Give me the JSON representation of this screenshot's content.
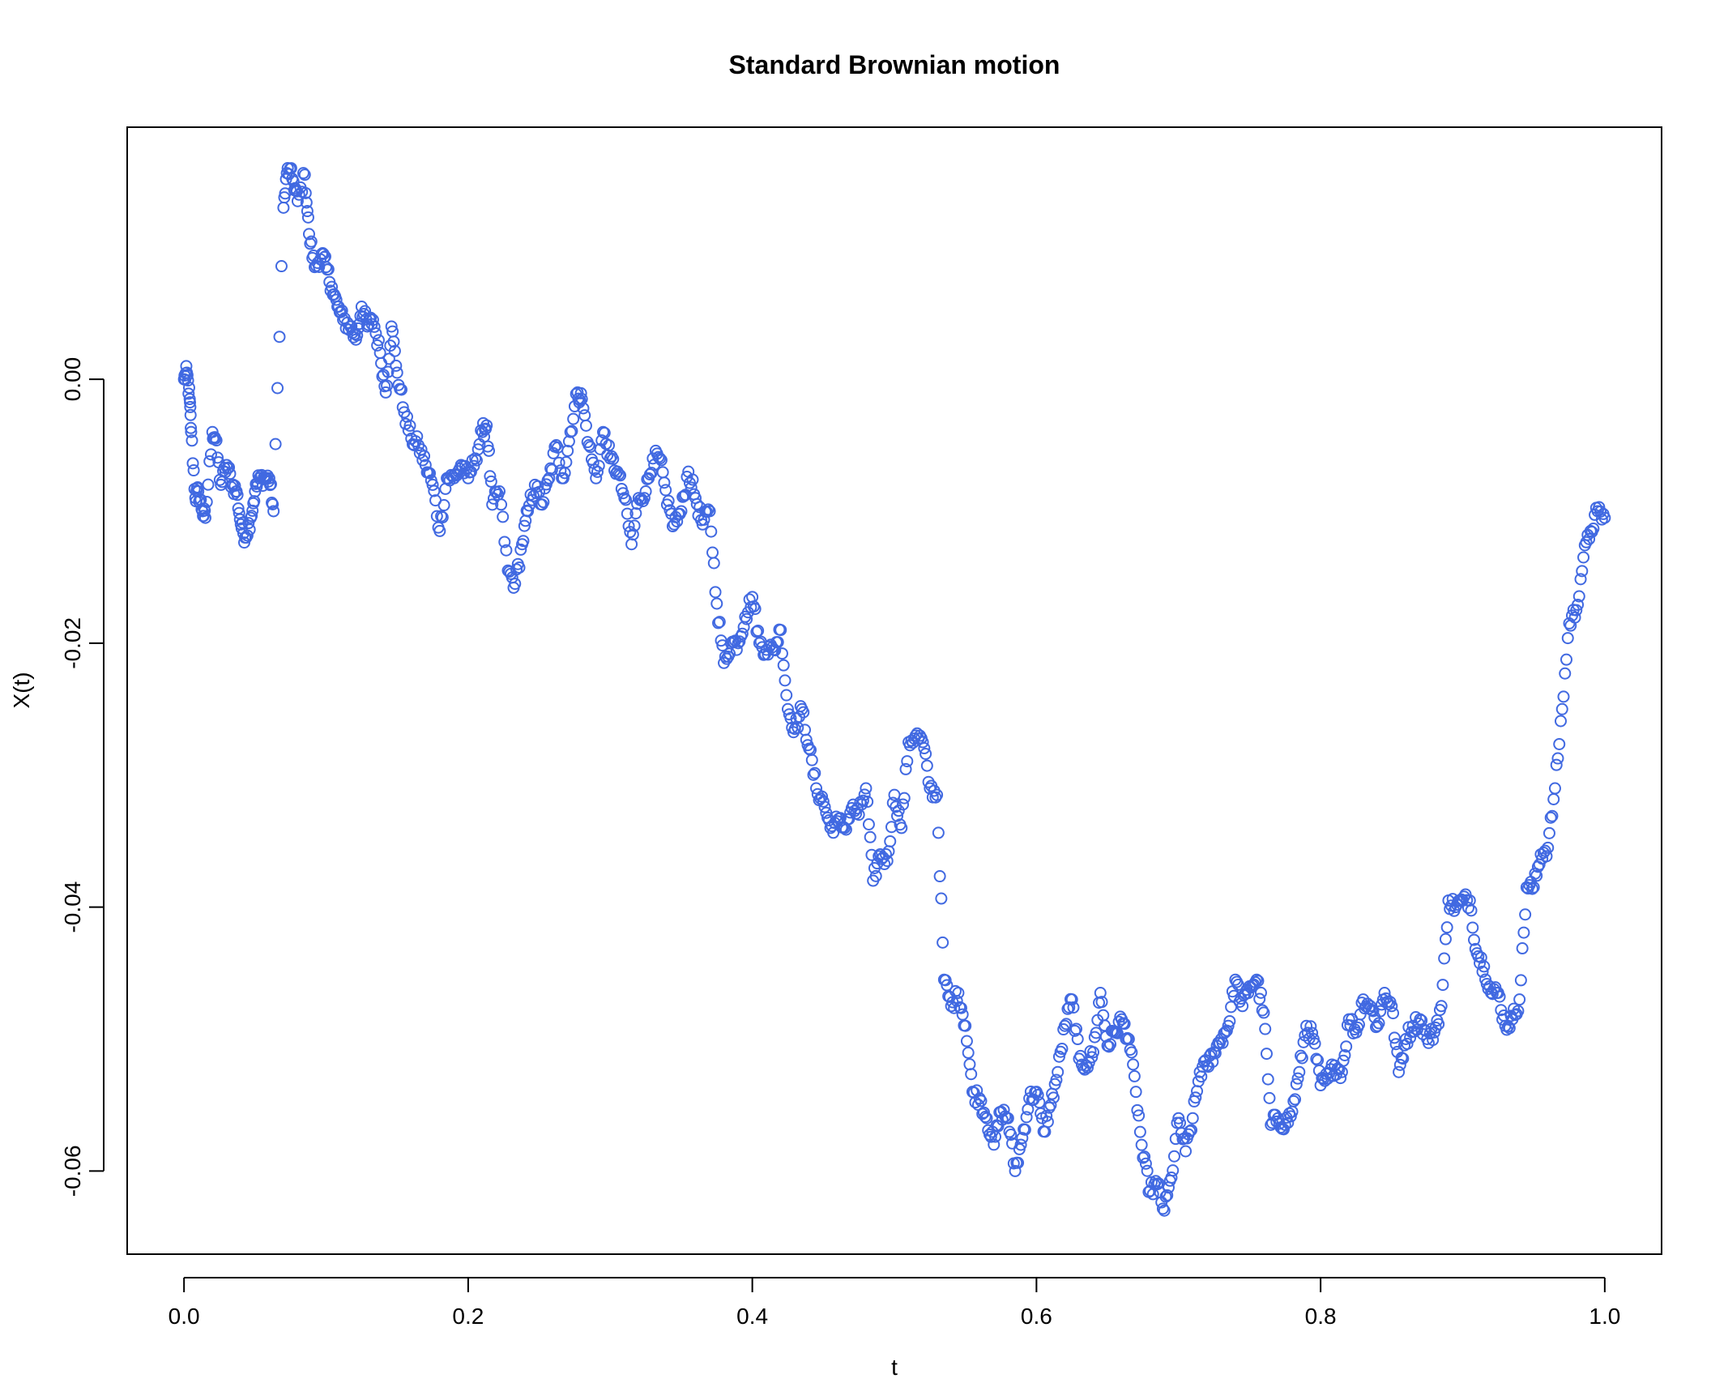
{
  "chart_data": {
    "type": "scatter",
    "title": "Standard Brownian motion",
    "xlabel": "t",
    "ylabel": "X(t)",
    "xlim": [
      -0.04,
      1.04
    ],
    "ylim": [
      -0.0663,
      0.0191
    ],
    "x_ticks": [
      0.0,
      0.2,
      0.4,
      0.6,
      0.8,
      1.0
    ],
    "x_tick_labels": [
      "0.0",
      "0.2",
      "0.4",
      "0.6",
      "0.8",
      "1.0"
    ],
    "y_ticks": [
      0.0,
      -0.02,
      -0.04,
      -0.06
    ],
    "y_tick_labels": [
      "0.00",
      "-0.02",
      "-0.04",
      "-0.06"
    ],
    "grid": false,
    "legend": false,
    "marker": "open-circle",
    "point_color": "#4169e1",
    "series": [
      {
        "anchors": [
          [
            0.0,
            0.0
          ],
          [
            0.002,
            0.0005
          ],
          [
            0.004,
            -0.0015
          ],
          [
            0.005,
            -0.004
          ],
          [
            0.008,
            -0.009
          ],
          [
            0.01,
            -0.0085
          ],
          [
            0.013,
            -0.01
          ],
          [
            0.015,
            -0.0105
          ],
          [
            0.02,
            -0.004
          ],
          [
            0.022,
            -0.0045
          ],
          [
            0.026,
            -0.008
          ],
          [
            0.03,
            -0.0065
          ],
          [
            0.034,
            -0.008
          ],
          [
            0.037,
            -0.0085
          ],
          [
            0.04,
            -0.011
          ],
          [
            0.043,
            -0.012
          ],
          [
            0.047,
            -0.0105
          ],
          [
            0.05,
            -0.0085
          ],
          [
            0.053,
            -0.0075
          ],
          [
            0.057,
            -0.0075
          ],
          [
            0.06,
            -0.0075
          ],
          [
            0.063,
            -0.01
          ],
          [
            0.07,
            0.013
          ],
          [
            0.073,
            0.016
          ],
          [
            0.077,
            0.015
          ],
          [
            0.08,
            0.0135
          ],
          [
            0.085,
            0.0155
          ],
          [
            0.088,
            0.011
          ],
          [
            0.092,
            0.0085
          ],
          [
            0.097,
            0.0095
          ],
          [
            0.1,
            0.0085
          ],
          [
            0.104,
            0.007
          ],
          [
            0.108,
            0.0055
          ],
          [
            0.112,
            0.0045
          ],
          [
            0.117,
            0.004
          ],
          [
            0.121,
            0.003
          ],
          [
            0.125,
            0.0055
          ],
          [
            0.129,
            0.004
          ],
          [
            0.133,
            0.0045
          ],
          [
            0.138,
            0.002
          ],
          [
            0.142,
            -0.001
          ],
          [
            0.146,
            0.004
          ],
          [
            0.15,
            0.0005
          ],
          [
            0.155,
            -0.0025
          ],
          [
            0.16,
            -0.0045
          ],
          [
            0.165,
            -0.005
          ],
          [
            0.17,
            -0.0065
          ],
          [
            0.175,
            -0.008
          ],
          [
            0.18,
            -0.0115
          ],
          [
            0.185,
            -0.0075
          ],
          [
            0.19,
            -0.0075
          ],
          [
            0.195,
            -0.0065
          ],
          [
            0.2,
            -0.0075
          ],
          [
            0.205,
            -0.006
          ],
          [
            0.21,
            -0.004
          ],
          [
            0.213,
            -0.0035
          ],
          [
            0.217,
            -0.0095
          ],
          [
            0.222,
            -0.0085
          ],
          [
            0.228,
            -0.0145
          ],
          [
            0.233,
            -0.0155
          ],
          [
            0.238,
            -0.0125
          ],
          [
            0.242,
            -0.01
          ],
          [
            0.247,
            -0.008
          ],
          [
            0.252,
            -0.0095
          ],
          [
            0.257,
            -0.0075
          ],
          [
            0.262,
            -0.005
          ],
          [
            0.267,
            -0.0075
          ],
          [
            0.272,
            -0.004
          ],
          [
            0.277,
            -0.001
          ],
          [
            0.28,
            -0.0015
          ],
          [
            0.285,
            -0.005
          ],
          [
            0.29,
            -0.0075
          ],
          [
            0.295,
            -0.004
          ],
          [
            0.3,
            -0.006
          ],
          [
            0.305,
            -0.007
          ],
          [
            0.31,
            -0.009
          ],
          [
            0.315,
            -0.0125
          ],
          [
            0.32,
            -0.009
          ],
          [
            0.325,
            -0.0085
          ],
          [
            0.33,
            -0.006
          ],
          [
            0.335,
            -0.006
          ],
          [
            0.34,
            -0.0095
          ],
          [
            0.345,
            -0.011
          ],
          [
            0.35,
            -0.01
          ],
          [
            0.355,
            -0.007
          ],
          [
            0.36,
            -0.009
          ],
          [
            0.365,
            -0.011
          ],
          [
            0.37,
            -0.01
          ],
          [
            0.375,
            -0.017
          ],
          [
            0.38,
            -0.0215
          ],
          [
            0.385,
            -0.02
          ],
          [
            0.39,
            -0.02
          ],
          [
            0.395,
            -0.018
          ],
          [
            0.4,
            -0.0165
          ],
          [
            0.405,
            -0.02
          ],
          [
            0.41,
            -0.0205
          ],
          [
            0.415,
            -0.0205
          ],
          [
            0.42,
            -0.019
          ],
          [
            0.425,
            -0.025
          ],
          [
            0.43,
            -0.0265
          ],
          [
            0.435,
            -0.025
          ],
          [
            0.44,
            -0.028
          ],
          [
            0.445,
            -0.031
          ],
          [
            0.45,
            -0.032
          ],
          [
            0.455,
            -0.034
          ],
          [
            0.46,
            -0.0335
          ],
          [
            0.465,
            -0.034
          ],
          [
            0.47,
            -0.0325
          ],
          [
            0.475,
            -0.033
          ],
          [
            0.48,
            -0.031
          ],
          [
            0.485,
            -0.038
          ],
          [
            0.49,
            -0.036
          ],
          [
            0.495,
            -0.0365
          ],
          [
            0.5,
            -0.0315
          ],
          [
            0.505,
            -0.034
          ],
          [
            0.51,
            -0.0275
          ],
          [
            0.515,
            -0.027
          ],
          [
            0.52,
            -0.0275
          ],
          [
            0.525,
            -0.031
          ],
          [
            0.53,
            -0.0315
          ],
          [
            0.535,
            -0.0455
          ],
          [
            0.54,
            -0.0475
          ],
          [
            0.545,
            -0.0465
          ],
          [
            0.55,
            -0.049
          ],
          [
            0.555,
            -0.054
          ],
          [
            0.56,
            -0.0545
          ],
          [
            0.565,
            -0.056
          ],
          [
            0.57,
            -0.058
          ],
          [
            0.575,
            -0.0555
          ],
          [
            0.58,
            -0.056
          ],
          [
            0.585,
            -0.06
          ],
          [
            0.59,
            -0.0575
          ],
          [
            0.595,
            -0.0545
          ],
          [
            0.6,
            -0.054
          ],
          [
            0.605,
            -0.057
          ],
          [
            0.61,
            -0.055
          ],
          [
            0.615,
            -0.0525
          ],
          [
            0.62,
            -0.049
          ],
          [
            0.625,
            -0.047
          ],
          [
            0.63,
            -0.0515
          ],
          [
            0.635,
            -0.052
          ],
          [
            0.64,
            -0.051
          ],
          [
            0.645,
            -0.0465
          ],
          [
            0.65,
            -0.0505
          ],
          [
            0.655,
            -0.0495
          ],
          [
            0.66,
            -0.0485
          ],
          [
            0.665,
            -0.05
          ],
          [
            0.67,
            -0.054
          ],
          [
            0.675,
            -0.059
          ],
          [
            0.68,
            -0.0615
          ],
          [
            0.685,
            -0.061
          ],
          [
            0.69,
            -0.063
          ],
          [
            0.695,
            -0.0605
          ],
          [
            0.7,
            -0.056
          ],
          [
            0.705,
            -0.0585
          ],
          [
            0.71,
            -0.056
          ],
          [
            0.715,
            -0.0525
          ],
          [
            0.72,
            -0.052
          ],
          [
            0.725,
            -0.051
          ],
          [
            0.73,
            -0.05
          ],
          [
            0.735,
            -0.049
          ],
          [
            0.74,
            -0.0455
          ],
          [
            0.745,
            -0.0475
          ],
          [
            0.75,
            -0.046
          ],
          [
            0.755,
            -0.0455
          ],
          [
            0.76,
            -0.048
          ],
          [
            0.765,
            -0.0565
          ],
          [
            0.77,
            -0.056
          ],
          [
            0.775,
            -0.0565
          ],
          [
            0.78,
            -0.0555
          ],
          [
            0.785,
            -0.0525
          ],
          [
            0.79,
            -0.049
          ],
          [
            0.795,
            -0.05
          ],
          [
            0.8,
            -0.0535
          ],
          [
            0.805,
            -0.053
          ],
          [
            0.81,
            -0.052
          ],
          [
            0.815,
            -0.0525
          ],
          [
            0.82,
            -0.0485
          ],
          [
            0.825,
            -0.0495
          ],
          [
            0.83,
            -0.047
          ],
          [
            0.835,
            -0.0475
          ],
          [
            0.84,
            -0.049
          ],
          [
            0.845,
            -0.0465
          ],
          [
            0.85,
            -0.0475
          ],
          [
            0.855,
            -0.0525
          ],
          [
            0.86,
            -0.05
          ],
          [
            0.865,
            -0.049
          ],
          [
            0.87,
            -0.0485
          ],
          [
            0.875,
            -0.05
          ],
          [
            0.88,
            -0.0495
          ],
          [
            0.885,
            -0.0475
          ],
          [
            0.89,
            -0.0395
          ],
          [
            0.895,
            -0.04
          ],
          [
            0.9,
            -0.0395
          ],
          [
            0.905,
            -0.0395
          ],
          [
            0.91,
            -0.0435
          ],
          [
            0.915,
            -0.0445
          ],
          [
            0.92,
            -0.0465
          ],
          [
            0.925,
            -0.0465
          ],
          [
            0.93,
            -0.049
          ],
          [
            0.935,
            -0.0485
          ],
          [
            0.94,
            -0.047
          ],
          [
            0.945,
            -0.0385
          ],
          [
            0.95,
            -0.0385
          ],
          [
            0.955,
            -0.036
          ],
          [
            0.96,
            -0.0355
          ],
          [
            0.965,
            -0.031
          ],
          [
            0.97,
            -0.025
          ],
          [
            0.975,
            -0.0185
          ],
          [
            0.98,
            -0.0175
          ],
          [
            0.985,
            -0.0135
          ],
          [
            0.99,
            -0.0115
          ],
          [
            0.995,
            -0.01
          ],
          [
            1.0,
            -0.0105
          ]
        ]
      }
    ]
  }
}
